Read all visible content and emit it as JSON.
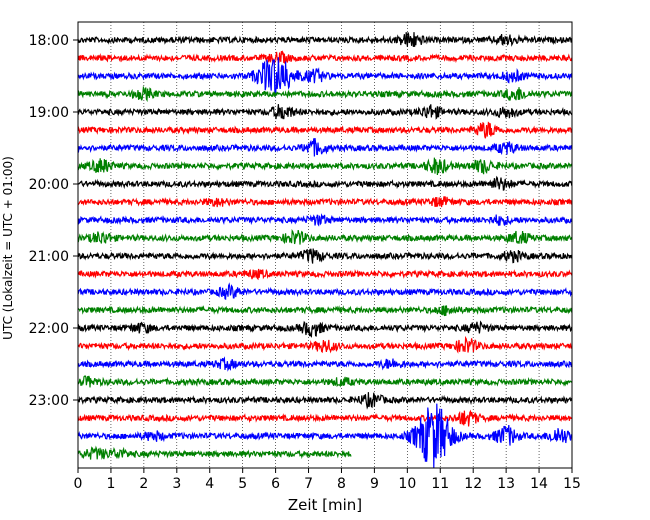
{
  "chart_data": {
    "type": "line",
    "title": "",
    "xlabel": "Zeit  [min]",
    "ylabel": "UTC (Lokalzeit = UTC + 01:00)",
    "xlim": [
      0,
      15
    ],
    "x_ticks": [
      "0",
      "1",
      "2",
      "3",
      "4",
      "5",
      "6",
      "7",
      "8",
      "9",
      "10",
      "11",
      "12",
      "13",
      "14",
      "15"
    ],
    "y_ticks": [
      "18:00",
      "19:00",
      "20:00",
      "21:00",
      "22:00",
      "23:00"
    ],
    "grid": "vertical dotted at each minute",
    "trace_colors": [
      "#000000",
      "#ff0000",
      "#0000ff",
      "#008000"
    ],
    "traces": [
      {
        "start": "18:00",
        "end_min": 15,
        "events": [
          {
            "t": 10.1,
            "amp": 1.0
          },
          {
            "t": 13.0,
            "amp": 0.6
          }
        ]
      },
      {
        "start": "18:15",
        "end_min": 15,
        "events": [
          {
            "t": 6.1,
            "amp": 0.6
          }
        ]
      },
      {
        "start": "18:30",
        "end_min": 15,
        "events": [
          {
            "t": 6.0,
            "amp": 2.8
          },
          {
            "t": 7.2,
            "amp": 0.7
          },
          {
            "t": 13.2,
            "amp": 0.6
          }
        ]
      },
      {
        "start": "18:45",
        "end_min": 15,
        "events": [
          {
            "t": 2.0,
            "amp": 0.6
          },
          {
            "t": 13.3,
            "amp": 0.8
          }
        ]
      },
      {
        "start": "19:00",
        "end_min": 15,
        "events": [
          {
            "t": 6.2,
            "amp": 0.9
          },
          {
            "t": 10.7,
            "amp": 0.8
          },
          {
            "t": 13.0,
            "amp": 0.6
          }
        ]
      },
      {
        "start": "19:15",
        "end_min": 15,
        "events": [
          {
            "t": 12.4,
            "amp": 0.9
          }
        ]
      },
      {
        "start": "19:30",
        "end_min": 15,
        "events": [
          {
            "t": 7.2,
            "amp": 1.0
          },
          {
            "t": 13.0,
            "amp": 0.6
          }
        ]
      },
      {
        "start": "19:45",
        "end_min": 15,
        "events": [
          {
            "t": 0.7,
            "amp": 0.8
          },
          {
            "t": 10.9,
            "amp": 1.0
          },
          {
            "t": 12.3,
            "amp": 0.8
          }
        ]
      },
      {
        "start": "20:00",
        "end_min": 15,
        "events": [
          {
            "t": 12.8,
            "amp": 0.7
          }
        ]
      },
      {
        "start": "20:15",
        "end_min": 15,
        "events": [
          {
            "t": 4.2,
            "amp": 0.4
          },
          {
            "t": 11.0,
            "amp": 0.5
          }
        ]
      },
      {
        "start": "20:30",
        "end_min": 15,
        "events": [
          {
            "t": 7.3,
            "amp": 0.5
          },
          {
            "t": 12.8,
            "amp": 0.5
          }
        ]
      },
      {
        "start": "20:45",
        "end_min": 15,
        "events": [
          {
            "t": 0.7,
            "amp": 0.7
          },
          {
            "t": 6.6,
            "amp": 0.8
          },
          {
            "t": 13.4,
            "amp": 0.7
          }
        ]
      },
      {
        "start": "21:00",
        "end_min": 15,
        "events": [
          {
            "t": 7.1,
            "amp": 0.8
          },
          {
            "t": 13.2,
            "amp": 0.6
          }
        ]
      },
      {
        "start": "21:15",
        "end_min": 15,
        "events": [
          {
            "t": 5.4,
            "amp": 0.4
          }
        ]
      },
      {
        "start": "21:30",
        "end_min": 15,
        "events": [
          {
            "t": 4.6,
            "amp": 0.7
          }
        ]
      },
      {
        "start": "21:45",
        "end_min": 15,
        "events": [
          {
            "t": 11.2,
            "amp": 0.5
          }
        ]
      },
      {
        "start": "22:00",
        "end_min": 15,
        "events": [
          {
            "t": 1.9,
            "amp": 0.5
          },
          {
            "t": 7.1,
            "amp": 0.9
          },
          {
            "t": 12.1,
            "amp": 0.6
          }
        ]
      },
      {
        "start": "22:15",
        "end_min": 15,
        "events": [
          {
            "t": 7.5,
            "amp": 0.7
          },
          {
            "t": 11.8,
            "amp": 0.9
          }
        ]
      },
      {
        "start": "22:30",
        "end_min": 15,
        "events": [
          {
            "t": 4.5,
            "amp": 0.5
          },
          {
            "t": 9.5,
            "amp": 0.5
          }
        ]
      },
      {
        "start": "22:45",
        "end_min": 15,
        "events": [
          {
            "t": 0.3,
            "amp": 0.5
          },
          {
            "t": 8.0,
            "amp": 0.4
          }
        ]
      },
      {
        "start": "23:00",
        "end_min": 15,
        "events": [
          {
            "t": 8.9,
            "amp": 0.8
          }
        ]
      },
      {
        "start": "23:15",
        "end_min": 15,
        "events": [
          {
            "t": 11.8,
            "amp": 0.9
          }
        ]
      },
      {
        "start": "23:30",
        "end_min": 15,
        "events": [
          {
            "t": 2.3,
            "amp": 0.5
          },
          {
            "t": 10.8,
            "amp": 4.5
          },
          {
            "t": 13.0,
            "amp": 1.3
          },
          {
            "t": 14.6,
            "amp": 1.0
          }
        ]
      },
      {
        "start": "23:45",
        "end_min": 8.3,
        "events": [
          {
            "t": 0.5,
            "amp": 0.6
          },
          {
            "t": 1.2,
            "amp": 0.5
          }
        ]
      }
    ]
  }
}
